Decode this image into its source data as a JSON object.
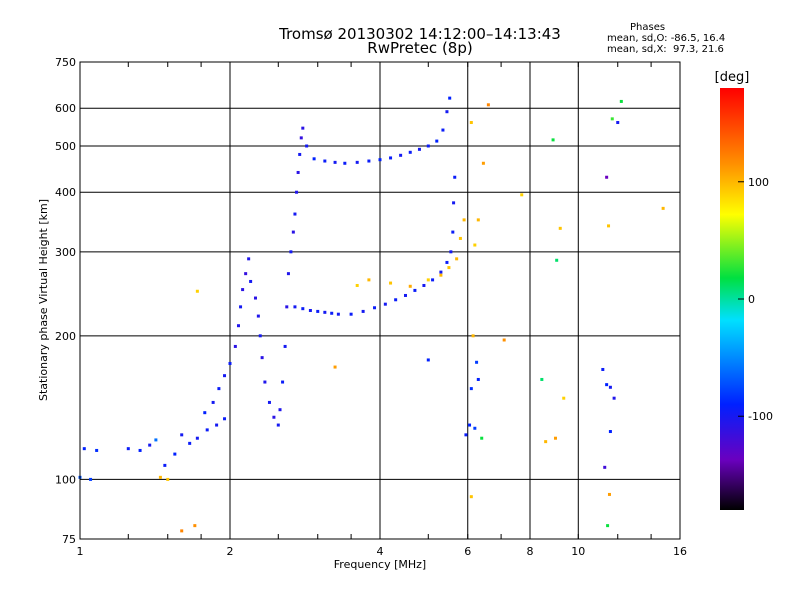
{
  "header": {
    "title_line1": "Tromsø 20130302 14:12:00–14:13:43",
    "title_line2": "RwPretec (8p)"
  },
  "phases": {
    "title": "Phases",
    "line_o": "mean, sd,O: -86.5, 16.4",
    "line_x": "mean, sd,X:  97.3, 21.6"
  },
  "colorbar": {
    "label": "[deg]",
    "ticks": [
      {
        "value": 100,
        "label": "100"
      },
      {
        "value": 0,
        "label": "0"
      },
      {
        "value": -100,
        "label": "-100"
      }
    ],
    "range": [
      -180,
      180
    ]
  },
  "chart_data": {
    "type": "scatter",
    "title": "Tromsø 20130302 14:12:00–14:13:43",
    "subtitle": "RwPretec (8p)",
    "xlabel": "Frequency [MHz]",
    "ylabel": "Stationary phase Virtual Height [km]",
    "xscale": "log2",
    "yscale": "log",
    "xlim": [
      1,
      16
    ],
    "ylim": [
      75,
      750
    ],
    "xticks": [
      1,
      2,
      4,
      6,
      8,
      10,
      16
    ],
    "yticks": [
      75,
      100,
      200,
      300,
      400,
      500,
      600,
      750
    ],
    "grid": true,
    "color_variable": "phase [deg]",
    "series": [
      {
        "points": [
          [
            1.0,
            101,
            -70
          ],
          [
            1.05,
            100,
            -80
          ],
          [
            1.02,
            116,
            -90
          ],
          [
            1.08,
            115,
            -85
          ],
          [
            1.25,
            116,
            -95
          ],
          [
            1.32,
            115,
            -90
          ],
          [
            1.38,
            118,
            -100
          ],
          [
            1.42,
            121,
            -60
          ],
          [
            1.48,
            107,
            -95
          ],
          [
            1.55,
            113,
            -90
          ],
          [
            1.6,
            124,
            -100
          ],
          [
            1.66,
            119,
            -95
          ],
          [
            1.72,
            122,
            -100
          ],
          [
            1.8,
            127,
            -95
          ],
          [
            1.88,
            130,
            -100
          ],
          [
            1.95,
            134,
            -95
          ],
          [
            1.78,
            138,
            -90
          ],
          [
            1.85,
            145,
            -100
          ],
          [
            1.9,
            155,
            -95
          ],
          [
            1.95,
            165,
            -100
          ],
          [
            2.0,
            175,
            -95
          ],
          [
            2.05,
            190,
            -110
          ],
          [
            2.08,
            210,
            -105
          ],
          [
            2.1,
            230,
            -100
          ],
          [
            2.12,
            250,
            -110
          ],
          [
            2.15,
            270,
            -115
          ],
          [
            2.18,
            290,
            -105
          ],
          [
            2.2,
            260,
            -100
          ],
          [
            2.25,
            240,
            -110
          ],
          [
            2.28,
            220,
            -105
          ],
          [
            2.3,
            200,
            -100
          ],
          [
            2.32,
            180,
            -110
          ],
          [
            2.35,
            160,
            -105
          ],
          [
            2.4,
            145,
            -100
          ],
          [
            2.45,
            135,
            -110
          ],
          [
            2.5,
            130,
            -100
          ],
          [
            2.52,
            140,
            -105
          ],
          [
            2.55,
            160,
            -95
          ],
          [
            2.58,
            190,
            -100
          ],
          [
            2.6,
            230,
            -110
          ],
          [
            2.62,
            270,
            -105
          ],
          [
            2.65,
            300,
            -100
          ],
          [
            2.68,
            330,
            -110
          ],
          [
            2.7,
            360,
            -100
          ],
          [
            2.72,
            400,
            -105
          ],
          [
            2.74,
            440,
            -110
          ],
          [
            2.76,
            480,
            -100
          ],
          [
            2.78,
            520,
            -115
          ],
          [
            2.8,
            545,
            -110
          ],
          [
            2.85,
            500,
            -100
          ],
          [
            2.95,
            470,
            -90
          ],
          [
            3.1,
            465,
            -95
          ],
          [
            3.25,
            462,
            -100
          ],
          [
            3.4,
            460,
            -95
          ],
          [
            3.6,
            462,
            -100
          ],
          [
            3.8,
            465,
            -95
          ],
          [
            4.0,
            468,
            -90
          ],
          [
            4.2,
            472,
            -95
          ],
          [
            4.4,
            478,
            -100
          ],
          [
            4.6,
            485,
            -95
          ],
          [
            4.8,
            492,
            -100
          ],
          [
            5.0,
            500,
            -95
          ],
          [
            5.2,
            512,
            -90
          ],
          [
            5.35,
            540,
            -95
          ],
          [
            5.45,
            590,
            -100
          ],
          [
            5.52,
            630,
            -90
          ],
          [
            2.7,
            230,
            -100
          ],
          [
            2.8,
            228,
            -95
          ],
          [
            2.9,
            226,
            -100
          ],
          [
            3.0,
            225,
            -95
          ],
          [
            3.1,
            224,
            -100
          ],
          [
            3.2,
            223,
            -95
          ],
          [
            3.3,
            222,
            -100
          ],
          [
            3.5,
            222,
            -95
          ],
          [
            3.7,
            225,
            -100
          ],
          [
            3.9,
            229,
            -95
          ],
          [
            4.1,
            233,
            -100
          ],
          [
            4.3,
            238,
            -95
          ],
          [
            4.5,
            243,
            -100
          ],
          [
            4.7,
            249,
            -95
          ],
          [
            4.9,
            255,
            -100
          ],
          [
            5.1,
            262,
            -95
          ],
          [
            5.3,
            272,
            -100
          ],
          [
            5.45,
            285,
            -95
          ],
          [
            5.55,
            300,
            -100
          ],
          [
            5.6,
            330,
            -95
          ],
          [
            5.62,
            380,
            -100
          ],
          [
            5.65,
            430,
            -95
          ],
          [
            3.6,
            255,
            90
          ],
          [
            3.8,
            262,
            100
          ],
          [
            4.2,
            258,
            95
          ],
          [
            4.6,
            254,
            105
          ],
          [
            5.0,
            262,
            90
          ],
          [
            5.3,
            268,
            100
          ],
          [
            5.5,
            278,
            95
          ],
          [
            5.7,
            290,
            100
          ],
          [
            5.8,
            320,
            95
          ],
          [
            5.9,
            350,
            100
          ],
          [
            6.2,
            310,
            90
          ],
          [
            6.3,
            350,
            100
          ],
          [
            6.45,
            460,
            110
          ],
          [
            6.6,
            610,
            120
          ],
          [
            1.6,
            78,
            120
          ],
          [
            1.7,
            80,
            115
          ],
          [
            1.45,
            101,
            100
          ],
          [
            1.5,
            100,
            95
          ],
          [
            1.72,
            248,
            90
          ],
          [
            3.25,
            172,
            110
          ],
          [
            6.1,
            92,
            95
          ],
          [
            6.15,
            200,
            100
          ],
          [
            6.25,
            176,
            -80
          ],
          [
            6.3,
            162,
            -90
          ],
          [
            7.1,
            196,
            115
          ],
          [
            7.7,
            395,
            90
          ],
          [
            9.2,
            336,
            95
          ],
          [
            9.05,
            288,
            10
          ],
          [
            9.35,
            148,
            90
          ],
          [
            11.2,
            170,
            -95
          ],
          [
            11.4,
            158,
            -90
          ],
          [
            11.6,
            156,
            -100
          ],
          [
            11.8,
            148,
            -105
          ],
          [
            11.6,
            126,
            -90
          ],
          [
            11.3,
            106,
            -120
          ],
          [
            11.55,
            93,
            110
          ],
          [
            11.45,
            80,
            20
          ],
          [
            11.4,
            430,
            -140
          ],
          [
            11.5,
            340,
            95
          ],
          [
            11.7,
            570,
            30
          ],
          [
            12.0,
            560,
            -100
          ],
          [
            12.2,
            620,
            20
          ],
          [
            14.8,
            370,
            100
          ],
          [
            5.0,
            178,
            -90
          ],
          [
            5.95,
            124,
            -95
          ],
          [
            6.05,
            130,
            -90
          ],
          [
            6.2,
            128,
            -80
          ],
          [
            6.4,
            122,
            20
          ],
          [
            9.0,
            122,
            110
          ],
          [
            8.6,
            120,
            100
          ],
          [
            6.1,
            155,
            -85
          ],
          [
            8.9,
            515,
            20
          ],
          [
            8.45,
            162,
            10
          ],
          [
            6.1,
            560,
            95
          ]
        ]
      }
    ]
  }
}
